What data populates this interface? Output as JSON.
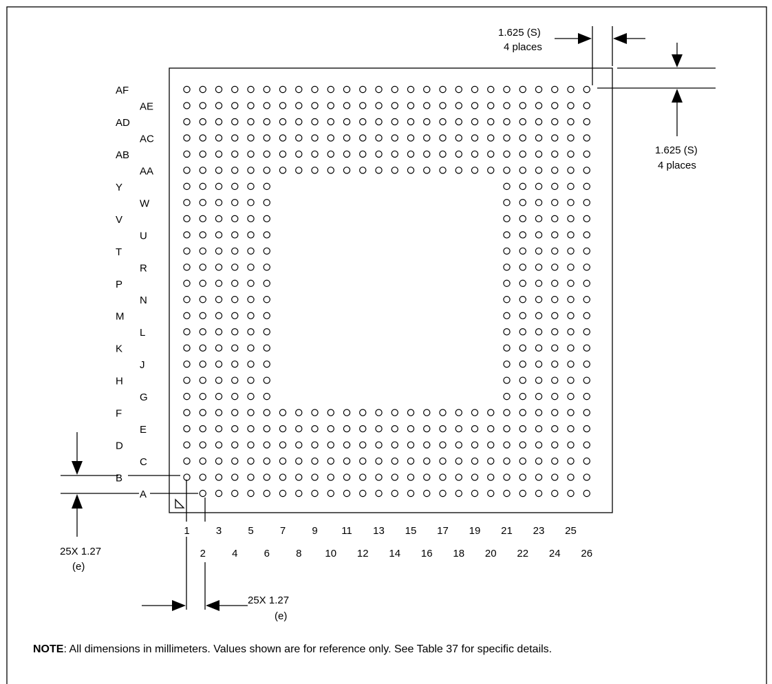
{
  "package": {
    "rows": [
      "A",
      "B",
      "C",
      "D",
      "E",
      "F",
      "G",
      "H",
      "J",
      "K",
      "L",
      "M",
      "N",
      "P",
      "R",
      "T",
      "U",
      "V",
      "W",
      "Y",
      "AA",
      "AB",
      "AC",
      "AD",
      "AE",
      "AF"
    ],
    "columns": [
      "1",
      "2",
      "3",
      "4",
      "5",
      "6",
      "7",
      "8",
      "9",
      "10",
      "11",
      "12",
      "13",
      "14",
      "15",
      "16",
      "17",
      "18",
      "19",
      "20",
      "21",
      "22",
      "23",
      "24",
      "25",
      "26"
    ],
    "full_rows_each_edge": 6,
    "full_columns_each_edge": 6,
    "corner_marker": "pin-a1-index-triangle"
  },
  "dimensions": {
    "corner_top_h": {
      "value": "1.625 (S)",
      "places": "4 places"
    },
    "corner_right_v": {
      "value": "1.625 (S)",
      "places": "4 places"
    },
    "pitch_vertical": {
      "value": "25X 1.27",
      "symbol": "(e)"
    },
    "pitch_horizontal": {
      "value": "25X 1.27",
      "symbol": "(e)"
    }
  },
  "note": {
    "label": "NOTE",
    "text": ": All dimensions in millimeters.  Values shown are for reference only. See Table 37 for specific details."
  }
}
